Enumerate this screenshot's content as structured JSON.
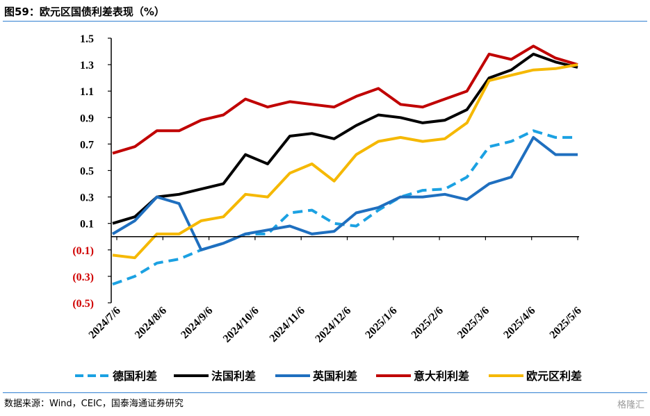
{
  "figure": {
    "title": "图59：欧元区国债利差表现（%）",
    "source": "数据来源：Wind，CEIC，国泰海通证券研究",
    "watermark": "格隆汇"
  },
  "colors": {
    "rule": "#2f7fd1",
    "negative_tick": "#d00000",
    "germany": "#1ba1e2",
    "france": "#000000",
    "uk": "#1f6fbf",
    "italy": "#c00000",
    "eurozone": "#f5b800"
  },
  "chart_data": {
    "type": "line",
    "title": "",
    "xlabel": "",
    "ylabel": "",
    "ylim": [
      -0.5,
      1.5
    ],
    "grid": false,
    "legend_position": "bottom",
    "y_ticks": [
      "1.5",
      "1.3",
      "1.1",
      "0.9",
      "0.7",
      "0.5",
      "0.3",
      "0.1",
      "(0.1)",
      "(0.3)",
      "(0.5)"
    ],
    "x_ticks": [
      "2024/7/6",
      "2024/8/6",
      "2024/9/6",
      "2024/10/6",
      "2024/11/6",
      "2024/12/6",
      "2025/1/6",
      "2025/2/6",
      "2025/3/6",
      "2025/4/6",
      "2025/5/6"
    ],
    "x": [
      "2024/7/6",
      "2024/7/21",
      "2024/8/6",
      "2024/8/21",
      "2024/9/6",
      "2024/9/21",
      "2024/10/6",
      "2024/10/21",
      "2024/11/6",
      "2024/11/21",
      "2024/12/6",
      "2024/12/21",
      "2025/1/6",
      "2025/1/21",
      "2025/2/6",
      "2025/2/21",
      "2025/3/6",
      "2025/3/21",
      "2025/4/6",
      "2025/4/21",
      "2025/5/6",
      "2025/5/21"
    ],
    "series": [
      {
        "name": "德国利差",
        "key": "germany",
        "style": "dashed",
        "values": [
          -0.36,
          -0.3,
          -0.2,
          -0.17,
          -0.1,
          -0.05,
          0.02,
          0.02,
          0.18,
          0.2,
          0.1,
          0.08,
          0.2,
          0.3,
          0.35,
          0.36,
          0.45,
          0.68,
          0.72,
          0.8,
          0.75,
          0.75
        ]
      },
      {
        "name": "法国利差",
        "key": "france",
        "style": "solid",
        "values": [
          0.1,
          0.15,
          0.3,
          0.32,
          0.36,
          0.4,
          0.62,
          0.55,
          0.76,
          0.78,
          0.74,
          0.84,
          0.92,
          0.9,
          0.86,
          0.88,
          0.96,
          1.2,
          1.26,
          1.38,
          1.32,
          1.28
        ]
      },
      {
        "name": "英国利差",
        "key": "uk",
        "style": "solid",
        "values": [
          0.02,
          0.12,
          0.3,
          0.25,
          -0.1,
          -0.05,
          0.02,
          0.05,
          0.08,
          0.02,
          0.04,
          0.18,
          0.22,
          0.3,
          0.3,
          0.32,
          0.28,
          0.4,
          0.45,
          0.75,
          0.62,
          0.62
        ]
      },
      {
        "name": "意大利利差",
        "key": "italy",
        "style": "solid",
        "values": [
          0.63,
          0.68,
          0.8,
          0.8,
          0.88,
          0.92,
          1.04,
          0.98,
          1.02,
          1.0,
          0.98,
          1.06,
          1.12,
          1.0,
          0.98,
          1.04,
          1.1,
          1.38,
          1.34,
          1.44,
          1.35,
          1.3
        ]
      },
      {
        "name": "欧元区利差",
        "key": "eurozone",
        "style": "solid",
        "values": [
          -0.14,
          -0.16,
          0.02,
          0.02,
          0.12,
          0.15,
          0.32,
          0.3,
          0.48,
          0.55,
          0.42,
          0.62,
          0.72,
          0.75,
          0.72,
          0.74,
          0.86,
          1.18,
          1.22,
          1.26,
          1.27,
          1.3
        ]
      }
    ]
  }
}
